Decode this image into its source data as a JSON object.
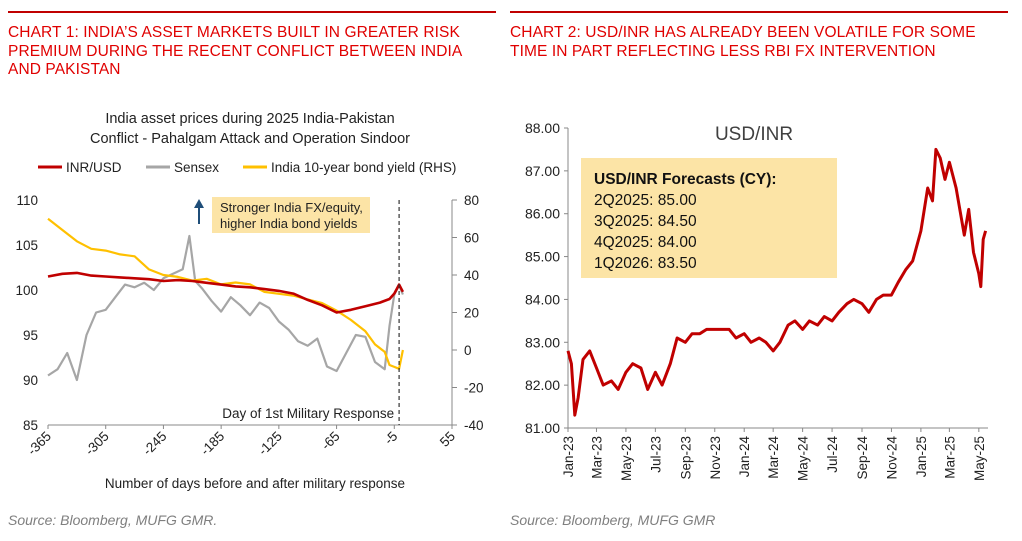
{
  "chart1": {
    "panel_title": "CHART 1: INDIA’S ASSET MARKETS BUILT IN GREATER RISK PREMIUM DURING THE RECENT CONFLICT BETWEEN INDIA AND PAKISTAN",
    "source": "Source: Bloomberg, MUFG GMR.",
    "chart_title_line1": "India asset prices during 2025 India-Pakistan",
    "chart_title_line2": "Conflict - Pahalgam Attack and Operation Sindoor",
    "annotation_line1": "Stronger India FX/equity,",
    "annotation_line2": "higher India bond yields",
    "vline_label": "Day of 1st Military Response",
    "colors": {
      "inrusd": "#c00000",
      "sensex": "#a6a6a6",
      "bond": "#ffc000",
      "annotation_bg": "#fce4a6",
      "arrow": "#1f4e79"
    }
  },
  "chart2": {
    "panel_title": "CHART 2: USD/INR HAS ALREADY BEEN VOLATILE FOR SOME TIME IN PART REFLECTING LESS RBI FX INTERVENTION",
    "source": "Source: Bloomberg, MUFG GMR",
    "chart_title": "USD/INR",
    "forecast_heading": "USD/INR Forecasts (CY):",
    "forecasts": [
      "2Q2025: 85.00",
      "3Q2025: 84.50",
      "4Q2025: 84.00",
      "1Q2026: 83.50"
    ],
    "colors": {
      "line": "#c00000",
      "forecast_bg": "#fce4a6"
    }
  },
  "chart_data": [
    {
      "type": "line",
      "title": "India asset prices during 2025 India-Pakistan Conflict - Pahalgam Attack and Operation Sindoor",
      "xlabel": "Number of days before and after military response",
      "ylabel": "",
      "y2label": "",
      "xlim": [
        -365,
        55
      ],
      "ylim": [
        85,
        110
      ],
      "y2lim": [
        -40,
        80
      ],
      "x_ticks": [
        -365,
        -305,
        -245,
        -185,
        -125,
        -65,
        -5,
        55
      ],
      "y_ticks": [
        85,
        90,
        95,
        100,
        105,
        110
      ],
      "y2_ticks": [
        -40,
        -20,
        0,
        20,
        40,
        60,
        80
      ],
      "legend_position": "top",
      "vline_x": 0,
      "series": [
        {
          "name": "INR/USD",
          "axis": "left",
          "color": "#c00000",
          "x": [
            -365,
            -350,
            -335,
            -320,
            -305,
            -290,
            -275,
            -260,
            -245,
            -230,
            -215,
            -200,
            -185,
            -170,
            -155,
            -140,
            -125,
            -110,
            -95,
            -80,
            -65,
            -50,
            -35,
            -20,
            -10,
            -5,
            0,
            4
          ],
          "y": [
            101.5,
            101.8,
            101.9,
            101.6,
            101.5,
            101.4,
            101.3,
            101.2,
            101.0,
            101.1,
            101.0,
            100.8,
            100.6,
            100.4,
            100.3,
            100.1,
            99.9,
            99.6,
            98.9,
            98.3,
            97.5,
            97.8,
            98.2,
            98.6,
            99.0,
            99.6,
            100.6,
            99.8
          ]
        },
        {
          "name": "Sensex",
          "axis": "left",
          "color": "#a6a6a6",
          "x": [
            -365,
            -355,
            -345,
            -335,
            -325,
            -315,
            -305,
            -295,
            -285,
            -275,
            -265,
            -255,
            -245,
            -235,
            -225,
            -218,
            -212,
            -205,
            -195,
            -185,
            -175,
            -165,
            -155,
            -145,
            -135,
            -125,
            -115,
            -105,
            -95,
            -85,
            -75,
            -65,
            -55,
            -45,
            -35,
            -25,
            -15,
            -10,
            -5,
            0,
            4
          ],
          "y": [
            90.5,
            91.2,
            93.0,
            90.0,
            95.0,
            97.5,
            97.8,
            99.2,
            100.6,
            100.3,
            100.8,
            100.0,
            101.3,
            101.8,
            102.3,
            106.0,
            101.0,
            100.2,
            98.8,
            97.6,
            99.2,
            98.3,
            97.2,
            98.6,
            98.0,
            96.5,
            95.6,
            94.3,
            93.8,
            94.6,
            91.5,
            91.0,
            93.0,
            95.0,
            94.8,
            92.0,
            91.2,
            96.0,
            99.5,
            100.5,
            99.5
          ]
        },
        {
          "name": "India 10-year bond yield (RHS)",
          "axis": "right",
          "color": "#ffc000",
          "x": [
            -365,
            -350,
            -335,
            -320,
            -305,
            -290,
            -275,
            -260,
            -245,
            -230,
            -215,
            -200,
            -185,
            -170,
            -155,
            -140,
            -125,
            -110,
            -95,
            -80,
            -65,
            -50,
            -35,
            -25,
            -15,
            -10,
            -5,
            0,
            4
          ],
          "y": [
            70,
            64,
            58,
            54,
            53,
            51,
            50,
            43,
            40,
            39,
            37,
            38,
            35,
            36,
            35,
            31,
            30,
            29,
            27,
            25,
            21,
            16,
            10,
            3,
            -1,
            -8,
            -9,
            -10,
            0
          ]
        }
      ]
    },
    {
      "type": "line",
      "title": "USD/INR",
      "xlabel": "",
      "ylabel": "",
      "ylim": [
        81.0,
        88.0
      ],
      "y_ticks": [
        81.0,
        82.0,
        83.0,
        84.0,
        85.0,
        86.0,
        87.0,
        88.0
      ],
      "x_ticks": [
        "Jan-23",
        "Mar-23",
        "May-23",
        "Jul-23",
        "Sep-23",
        "Nov-23",
        "Jan-24",
        "Mar-24",
        "May-24",
        "Jul-24",
        "Sep-24",
        "Nov-24",
        "Jan-25",
        "Mar-25",
        "May-25"
      ],
      "series": [
        {
          "name": "USD/INR",
          "color": "#c00000",
          "x": [
            "2023-01-01",
            "2023-01-08",
            "2023-01-15",
            "2023-01-22",
            "2023-02-01",
            "2023-02-15",
            "2023-03-01",
            "2023-03-15",
            "2023-04-01",
            "2023-04-15",
            "2023-05-01",
            "2023-05-15",
            "2023-06-01",
            "2023-06-15",
            "2023-07-01",
            "2023-07-15",
            "2023-08-01",
            "2023-08-15",
            "2023-09-01",
            "2023-09-15",
            "2023-10-01",
            "2023-10-15",
            "2023-11-01",
            "2023-11-15",
            "2023-12-01",
            "2023-12-15",
            "2024-01-01",
            "2024-01-15",
            "2024-02-01",
            "2024-02-15",
            "2024-03-01",
            "2024-03-15",
            "2024-04-01",
            "2024-04-15",
            "2024-05-01",
            "2024-05-15",
            "2024-06-01",
            "2024-06-15",
            "2024-07-01",
            "2024-07-15",
            "2024-08-01",
            "2024-08-15",
            "2024-09-01",
            "2024-09-15",
            "2024-10-01",
            "2024-10-15",
            "2024-11-01",
            "2024-11-15",
            "2024-12-01",
            "2024-12-15",
            "2025-01-01",
            "2025-01-15",
            "2025-01-25",
            "2025-02-01",
            "2025-02-10",
            "2025-02-20",
            "2025-03-01",
            "2025-03-15",
            "2025-04-01",
            "2025-04-10",
            "2025-04-20",
            "2025-05-01",
            "2025-05-05",
            "2025-05-10",
            "2025-05-15"
          ],
          "y": [
            82.8,
            82.5,
            81.3,
            81.7,
            82.6,
            82.8,
            82.4,
            82.0,
            82.1,
            81.9,
            82.3,
            82.5,
            82.4,
            81.9,
            82.3,
            82.0,
            82.5,
            83.1,
            83.0,
            83.2,
            83.2,
            83.3,
            83.3,
            83.3,
            83.3,
            83.1,
            83.2,
            83.0,
            83.1,
            83.0,
            82.8,
            83.0,
            83.4,
            83.5,
            83.3,
            83.5,
            83.4,
            83.6,
            83.5,
            83.7,
            83.9,
            84.0,
            83.9,
            83.7,
            84.0,
            84.1,
            84.1,
            84.4,
            84.7,
            84.9,
            85.6,
            86.6,
            86.3,
            87.5,
            87.3,
            86.8,
            87.2,
            86.6,
            85.5,
            86.1,
            85.1,
            84.6,
            84.3,
            85.4,
            85.6
          ]
        }
      ]
    }
  ]
}
